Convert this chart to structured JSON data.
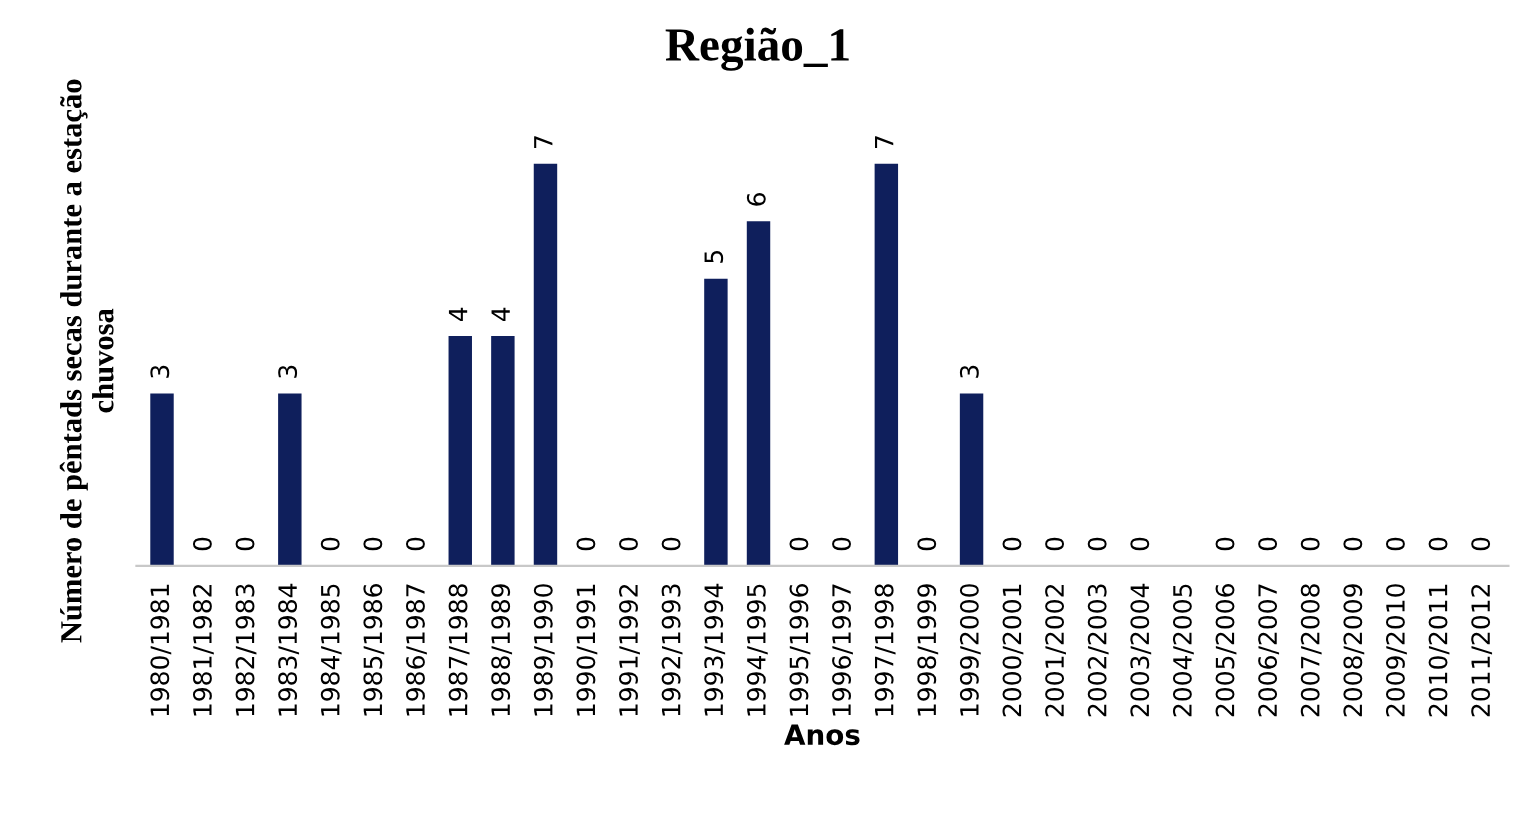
{
  "chart_data": {
    "type": "bar",
    "title": "Região_1",
    "xlabel": "Anos",
    "ylabel": "Número de pêntads secas durante a estação\nchuvosa",
    "categories": [
      "1980/1981",
      "1981/1982",
      "1982/1983",
      "1983/1984",
      "1984/1985",
      "1985/1986",
      "1986/1987",
      "1987/1988",
      "1988/1989",
      "1989/1990",
      "1990/1991",
      "1991/1992",
      "1992/1993",
      "1993/1994",
      "1994/1995",
      "1995/1996",
      "1996/1997",
      "1997/1998",
      "1998/1999",
      "1999/2000",
      "2000/2001",
      "2001/2002",
      "2002/2003",
      "2003/2004",
      "2004/2005",
      "2005/2006",
      "2006/2007",
      "2007/2008",
      "2008/2009",
      "2009/2010",
      "2010/2011",
      "2011/2012"
    ],
    "values": [
      3,
      0,
      0,
      3,
      0,
      0,
      0,
      4,
      4,
      7,
      0,
      0,
      0,
      5,
      6,
      0,
      0,
      7,
      0,
      3,
      0,
      0,
      0,
      0,
      null,
      0,
      0,
      0,
      0,
      0,
      0,
      0
    ],
    "color": "#0f1f5c",
    "data_labels": true,
    "grid": false,
    "legend": false
  }
}
